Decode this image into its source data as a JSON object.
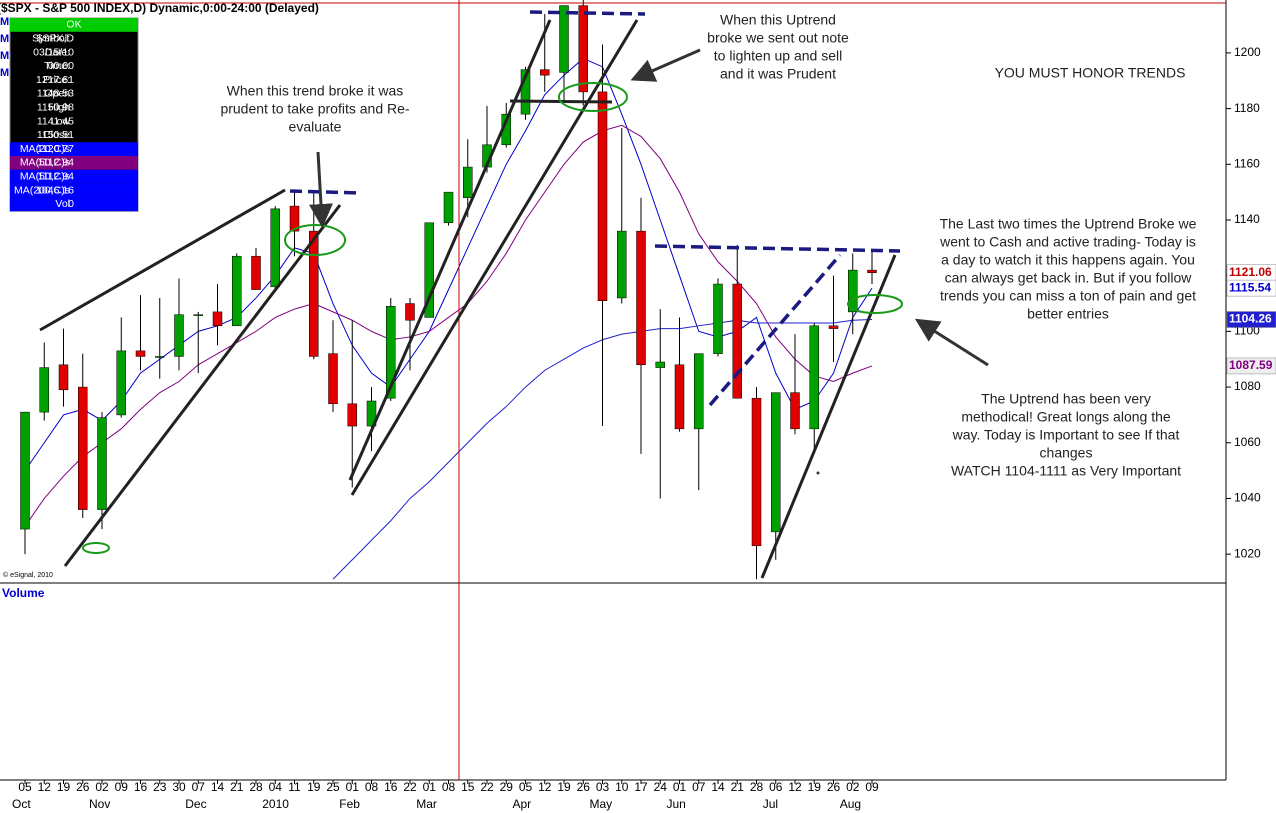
{
  "chart_data": {
    "type": "candlestick",
    "title": "($SPX - S&P 500 INDEX,D) Dynamic,0:00-24:00 (Delayed)",
    "volume_label": "Volume",
    "copyright": "© eSignal, 2010",
    "hidden_labels": [
      "M",
      "M",
      "M",
      "M"
    ],
    "categories": [
      "05",
      "12",
      "19",
      "26",
      "02",
      "09",
      "16",
      "23",
      "30",
      "07",
      "14",
      "21",
      "28",
      "04",
      "11",
      "19",
      "25",
      "01",
      "08",
      "16",
      "22",
      "01",
      "08",
      "15",
      "22",
      "29",
      "05",
      "12",
      "19",
      "26",
      "03",
      "10",
      "17",
      "24",
      "01",
      "07",
      "14",
      "21",
      "28",
      "06",
      "12",
      "19",
      "26",
      "02",
      "09"
    ],
    "months": [
      "Oct",
      null,
      null,
      null,
      "Nov",
      null,
      null,
      null,
      null,
      "Dec",
      null,
      null,
      null,
      "2010",
      null,
      null,
      null,
      "Feb",
      null,
      null,
      null,
      "Mar",
      null,
      null,
      null,
      null,
      "Apr",
      null,
      null,
      null,
      "May",
      null,
      null,
      null,
      "Jun",
      null,
      null,
      null,
      null,
      "Jul",
      null,
      null,
      null,
      "Aug",
      null
    ],
    "open": [
      1029,
      1071,
      1088,
      1080,
      1036,
      1070,
      1093,
      1091,
      1091,
      1106,
      1107,
      1102,
      1127,
      1116,
      1145,
      1136,
      1092,
      1074,
      1066,
      1076,
      1110,
      1105,
      1139,
      1148,
      1159,
      1167,
      1178,
      1194,
      1193,
      1217,
      1186,
      1112,
      1136,
      1087,
      1088,
      1065,
      1092,
      1117,
      1076,
      1028,
      1078,
      1065,
      1102,
      1107,
      1122
    ],
    "high": [
      1071,
      1096,
      1101,
      1092,
      1071,
      1105,
      1113,
      1112,
      1119,
      1107,
      1117,
      1128,
      1130,
      1145,
      1150,
      1150,
      1104,
      1104,
      1080,
      1112,
      1112,
      1139,
      1150,
      1169,
      1181,
      1182,
      1195,
      1214,
      1217,
      1219,
      1203,
      1173,
      1148,
      1108,
      1105,
      1092,
      1119,
      1131,
      1080,
      1078,
      1099,
      1103,
      1120,
      1128,
      1129
    ],
    "low": [
      1020,
      1068,
      1073,
      1033,
      1029,
      1069,
      1086,
      1083,
      1086,
      1085,
      1095,
      1102,
      1115,
      1115,
      1127,
      1090,
      1071,
      1044,
      1057,
      1075,
      1086,
      1105,
      1138,
      1141,
      1157,
      1166,
      1176,
      1186,
      1183,
      1181,
      1066,
      1110,
      1056,
      1040,
      1064,
      1043,
      1091,
      1076,
      1011,
      1018,
      1063,
      1056,
      1089,
      1099,
      1117
    ],
    "close": [
      1071,
      1087,
      1079,
      1036,
      1069,
      1093,
      1091,
      1091,
      1106,
      1106,
      1102,
      1127,
      1115,
      1144,
      1136,
      1091,
      1074,
      1066,
      1075,
      1109,
      1104,
      1139,
      1150,
      1159,
      1167,
      1178,
      1194,
      1192,
      1217,
      1186,
      1111,
      1136,
      1088,
      1089,
      1065,
      1092,
      1117,
      1076,
      1023,
      1078,
      1065,
      1102,
      1101,
      1122,
      1121.06
    ],
    "up_color": "#00a000",
    "down_color": "#e00000",
    "wick_color": "#000000",
    "series": [
      {
        "name": "MA(20,C)s",
        "color": "#0000cc",
        "values": [
          1050,
          1060,
          1070,
          1072,
          1068,
          1075,
          1085,
          1090,
          1095,
          1100,
          1102,
          1105,
          1112,
          1120,
          1130,
          1128,
          1110,
          1095,
          1085,
          1080,
          1090,
          1100,
          1115,
          1130,
          1145,
          1160,
          1172,
          1185,
          1192,
          1198,
          1195,
          1178,
          1160,
          1140,
          1120,
          1100,
          1098,
          1100,
          1105,
          1085,
          1072,
          1075,
          1085,
          1105,
          1115.54
        ]
      },
      {
        "name": "MA(50,C)s",
        "color": "#800080",
        "values": [
          1030,
          1040,
          1048,
          1055,
          1060,
          1065,
          1072,
          1078,
          1082,
          1088,
          1092,
          1096,
          1100,
          1105,
          1108,
          1110,
          1107,
          1104,
          1100,
          1097,
          1098,
          1100,
          1105,
          1110,
          1118,
          1128,
          1140,
          1150,
          1160,
          1168,
          1172,
          1174,
          1170,
          1162,
          1150,
          1135,
          1125,
          1118,
          1110,
          1098,
          1090,
          1084,
          1082,
          1085,
          1087.59
        ]
      },
      {
        "name": "MA(200,C)s",
        "color": "#2020d0",
        "values": [
          null,
          null,
          null,
          null,
          null,
          null,
          null,
          null,
          null,
          null,
          null,
          null,
          null,
          null,
          null,
          null,
          1011,
          1018,
          1025,
          1032,
          1040,
          1046,
          1053,
          1060,
          1067,
          1073,
          1080,
          1086,
          1090,
          1094,
          1097,
          1099,
          1100,
          1101,
          1101,
          1102,
          1103,
          1104,
          1103,
          1103,
          1103,
          1103,
          1103,
          1104,
          1104.26
        ]
      }
    ],
    "ylim": [
      1010,
      1219
    ],
    "yticks": [
      1020,
      1040,
      1060,
      1080,
      1100,
      1120,
      1140,
      1160,
      1180,
      1200
    ],
    "info_panel": {
      "status": "OK",
      "rows": [
        [
          "Symbol:",
          "$SPX,D"
        ],
        [
          "Date:",
          "03/15/10"
        ],
        [
          "Time:",
          "00:00"
        ],
        [
          "Price:",
          "1217.61"
        ],
        [
          "Open",
          "1148.53"
        ],
        [
          "High",
          "1150.98"
        ],
        [
          "Low",
          "1141.45"
        ],
        [
          "Close",
          "1150.51"
        ],
        [
          "MA(20,C)s",
          "1120.77"
        ],
        [
          "MA(50,C)s",
          "1112.94"
        ],
        [
          "MA(50,C)s",
          "1112.94"
        ],
        [
          "MA(200,C)s",
          "1046.16"
        ],
        [
          "Vol",
          "0"
        ]
      ]
    },
    "annotations": [
      {
        "lines": [
          "When this trend broke it was",
          "prudent to take profits and Re-",
          "evaluate"
        ]
      },
      {
        "lines": [
          "When this Uptrend",
          "broke we sent out note",
          "to lighten up and sell",
          "and it was Prudent"
        ]
      },
      {
        "lines": [
          "YOU MUST HONOR TRENDS"
        ]
      },
      {
        "lines": [
          "The Last two times the Uptrend Broke we",
          "went to Cash and active trading- Today is",
          "a day to watch it this happens again.  You",
          "can always get back in.  But if you follow",
          "trends you can miss a ton of pain and get",
          "better entries"
        ]
      },
      {
        "lines": [
          "The Uptrend has been very",
          "methodical! Great longs along the",
          "way.  Today is Important to see If that",
          "changes",
          "WATCH 1104-1111 as Very Important"
        ]
      }
    ]
  }
}
